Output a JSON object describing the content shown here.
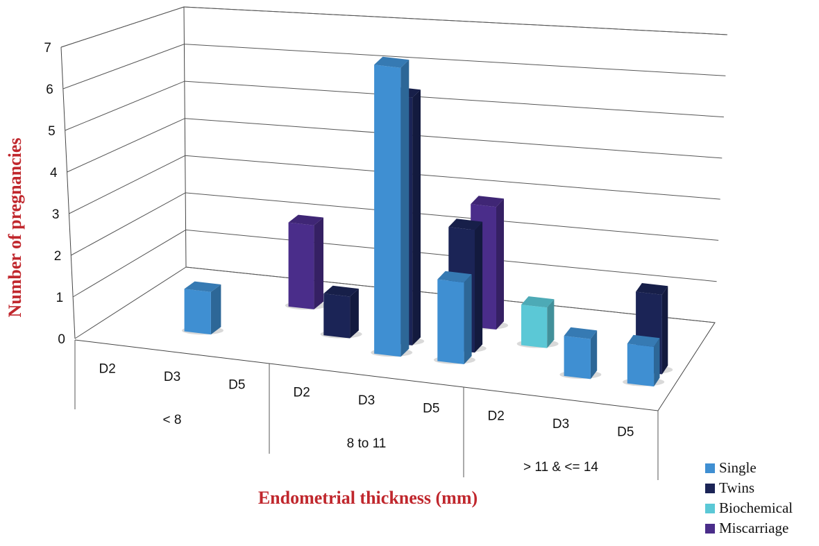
{
  "chart_data": {
    "type": "bar",
    "style": "3d-grouped",
    "ylabel": "Number of pregnancies",
    "xlabel": "Endometrial thickness (mm)",
    "ylim": [
      0,
      7
    ],
    "yticks": [
      "0",
      "1",
      "2",
      "3",
      "4",
      "5",
      "6",
      "7"
    ],
    "grid": true,
    "legend_position": "bottom-right",
    "groups": [
      {
        "label": "< 8",
        "subcategories": [
          "D2",
          "D3",
          "D5"
        ]
      },
      {
        "label": "8 to 11",
        "subcategories": [
          "D2",
          "D3",
          "D5"
        ]
      },
      {
        "label": "> 11 & <= 14",
        "subcategories": [
          "D2",
          "D3",
          "D5"
        ]
      }
    ],
    "series": [
      {
        "name": "Single",
        "color": "#3f8fd2",
        "values": [
          0,
          1,
          0,
          0,
          7,
          2,
          0,
          1,
          1
        ]
      },
      {
        "name": "Twins",
        "color": "#1b2456",
        "values": [
          0,
          0,
          0,
          1,
          6,
          3,
          0,
          0,
          2
        ]
      },
      {
        "name": "Biochemical",
        "color": "#5bc8d6",
        "values": [
          0,
          0,
          0,
          0,
          0,
          0,
          1,
          0,
          0
        ]
      },
      {
        "name": "Miscarriage",
        "color": "#4a2d8a",
        "values": [
          0,
          0,
          2,
          0,
          0,
          3,
          0,
          0,
          0
        ]
      }
    ]
  }
}
